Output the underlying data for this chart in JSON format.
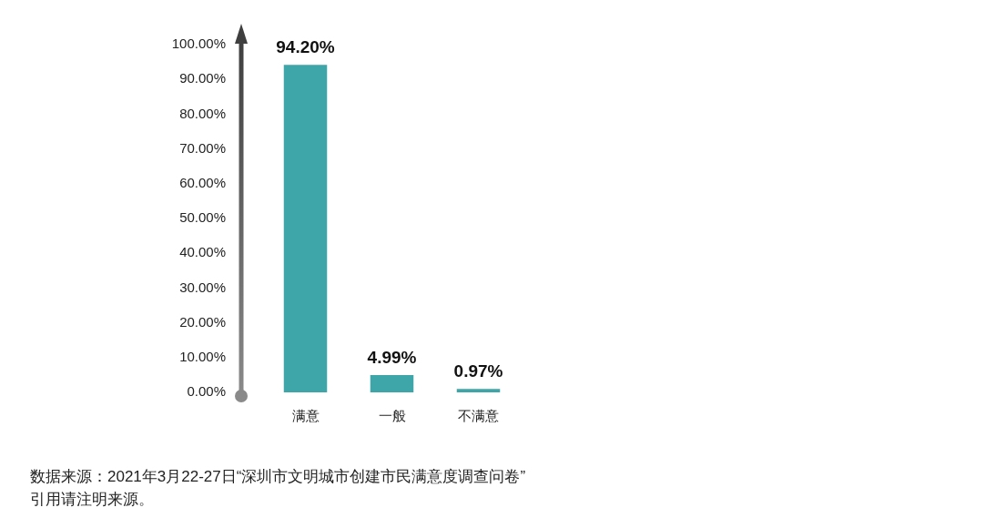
{
  "chart_data": {
    "type": "bar",
    "categories": [
      "满意",
      "一般",
      "不满意"
    ],
    "values": [
      94.2,
      4.99,
      0.97
    ],
    "value_labels": [
      "94.20%",
      "4.99%",
      "0.97%"
    ],
    "color": "#3ea6a8",
    "ylim": [
      0,
      100
    ],
    "yticks": [
      {
        "value": 0,
        "label": "0.00%"
      },
      {
        "value": 10,
        "label": "10.00%"
      },
      {
        "value": 20,
        "label": "20.00%"
      },
      {
        "value": 30,
        "label": "30.00%"
      },
      {
        "value": 40,
        "label": "40.00%"
      },
      {
        "value": 50,
        "label": "50.00%"
      },
      {
        "value": 60,
        "label": "60.00%"
      },
      {
        "value": 70,
        "label": "70.00%"
      },
      {
        "value": 80,
        "label": "80.00%"
      },
      {
        "value": 90,
        "label": "90.00%"
      },
      {
        "value": 100,
        "label": "100.00%"
      }
    ],
    "annotations": [
      "数据来源：2021年3月22-27日“深圳市文明城市创建市民满意度调查问卷”",
      "引用请注明来源。"
    ]
  }
}
